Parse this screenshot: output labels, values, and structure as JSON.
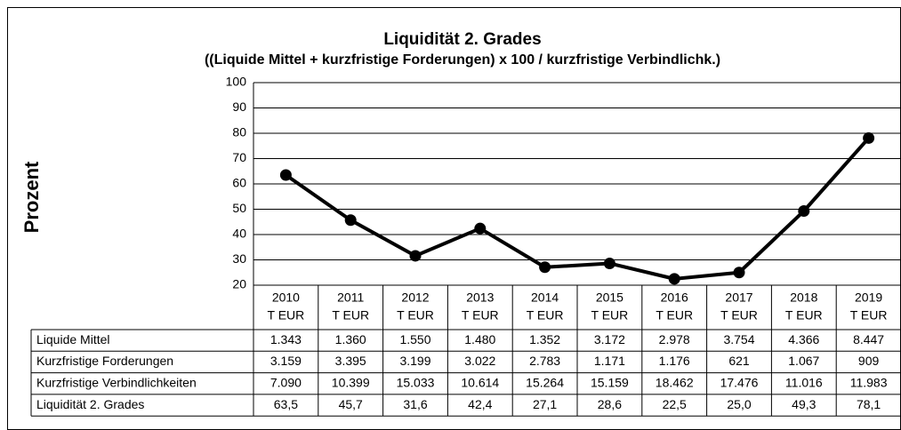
{
  "chart_data": {
    "type": "line",
    "title": "Liquidität 2. Grades",
    "subtitle": "((Liquide Mittel + kurzfristige Forderungen) x 100 / kurzfristige Verbindlichk.)",
    "ylabel": "Prozent",
    "categories": [
      "2010",
      "2011",
      "2012",
      "2013",
      "2014",
      "2015",
      "2016",
      "2017",
      "2018",
      "2019"
    ],
    "category_unit": "T EUR",
    "series": [
      {
        "name": "Liquidität 2. Grades",
        "color": "#000000",
        "values": [
          63.5,
          45.7,
          31.6,
          42.4,
          27.1,
          28.6,
          22.5,
          25.0,
          49.3,
          78.1
        ],
        "value_labels": [
          "63,5",
          "45,7",
          "31,6",
          "42,4",
          "27,1",
          "28,6",
          "22,5",
          "25,0",
          "49,3",
          "78,1"
        ]
      }
    ],
    "ylim": [
      20,
      100
    ],
    "yticks": [
      20,
      30,
      40,
      50,
      60,
      70,
      80,
      90,
      100
    ],
    "grid": true
  },
  "table": {
    "rows": [
      {
        "label": "Liquide Mittel",
        "cells": [
          "1.343",
          "1.360",
          "1.550",
          "1.480",
          "1.352",
          "3.172",
          "2.978",
          "3.754",
          "4.366",
          "8.447"
        ]
      },
      {
        "label": "Kurzfristige Forderungen",
        "cells": [
          "3.159",
          "3.395",
          "3.199",
          "3.022",
          "2.783",
          "1.171",
          "1.176",
          "621",
          "1.067",
          "909"
        ]
      },
      {
        "label": "Kurzfristige Verbindlichkeiten",
        "cells": [
          "7.090",
          "10.399",
          "15.033",
          "10.614",
          "15.264",
          "15.159",
          "18.462",
          "17.476",
          "11.016",
          "11.983"
        ]
      }
    ]
  }
}
